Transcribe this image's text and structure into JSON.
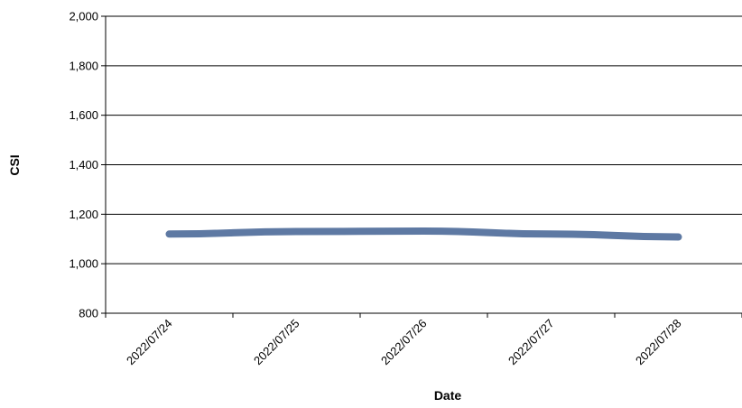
{
  "chart_data": {
    "type": "line",
    "title": "",
    "xlabel": "Date",
    "ylabel": "CSI",
    "categories": [
      "2022/07/24",
      "2022/07/25",
      "2022/07/26",
      "2022/07/27",
      "2022/07/28"
    ],
    "series": [
      {
        "values": [
          1120,
          1130,
          1132,
          1120,
          1108
        ],
        "color": "#5e79a3"
      }
    ],
    "ylim": [
      800,
      2000
    ],
    "yticks": [
      800,
      1000,
      1200,
      1400,
      1600,
      1800,
      2000
    ],
    "ytick_labels": [
      "800",
      "1,000",
      "1,200",
      "1,400",
      "1,600",
      "1,800",
      "2,000"
    ],
    "grid": "horizontal",
    "legend": "none"
  }
}
